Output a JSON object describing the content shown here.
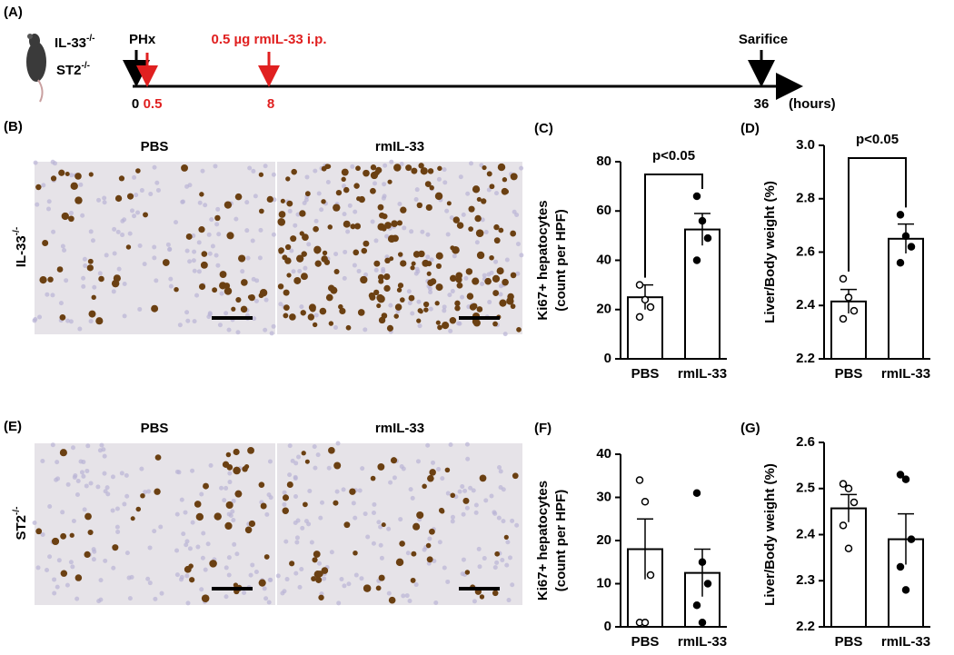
{
  "panel_labels": [
    "(A)",
    "(B)",
    "(C)",
    "(D)",
    "(E)",
    "(F)",
    "(G)"
  ],
  "timeline": {
    "genotypes": [
      {
        "text": "IL-33",
        "sup": "-/-"
      },
      {
        "text": "ST2",
        "sup": "-/-"
      }
    ],
    "events": [
      "PHx",
      "0.5 µg rmIL-33 i.p.",
      "Sarifice"
    ],
    "time_labels": [
      "0",
      "0.5",
      "8",
      "36"
    ],
    "unit": "(hours)"
  },
  "histology": {
    "column_titles": [
      "PBS",
      "rmIL-33"
    ],
    "rows": [
      {
        "text": "IL-33",
        "sup": "-/-"
      },
      {
        "text": "ST2",
        "sup": "-/-"
      }
    ]
  },
  "chart_data": [
    {
      "type": "bar",
      "ylabel": [
        "Ki67+ hepatocytes",
        "(count per HPF)"
      ],
      "annotation": "p<0.05",
      "categories": [
        "PBS",
        "rmIL-33"
      ],
      "values": [
        25,
        52.5
      ],
      "errors": [
        5,
        6.5
      ],
      "points": [
        [
          30,
          24,
          21,
          17
        ],
        [
          66,
          56,
          49,
          40
        ]
      ],
      "ylim": [
        0,
        80
      ],
      "yticks": [
        0,
        20,
        40,
        60,
        80
      ]
    },
    {
      "type": "bar",
      "ylabel": [
        "Liver/Body weight (%)"
      ],
      "annotation": "p<0.05",
      "categories": [
        "PBS",
        "rmIL-33"
      ],
      "values": [
        2.415,
        2.65
      ],
      "errors": [
        0.045,
        0.055
      ],
      "points": [
        [
          2.5,
          2.43,
          2.38,
          2.35
        ],
        [
          2.74,
          2.66,
          2.62,
          2.56
        ]
      ],
      "ylim": [
        2.2,
        3.0
      ],
      "yticks": [
        2.2,
        2.4,
        2.6,
        2.8,
        {
          "value": 3.0,
          "label": "3.0"
        }
      ]
    },
    {
      "type": "bar",
      "ylabel": [
        "Ki67+ hepatocytes",
        "(count per HPF)"
      ],
      "categories": [
        "PBS",
        "rmIL-33"
      ],
      "values": [
        18,
        12.5
      ],
      "errors": [
        7,
        5.5
      ],
      "points": [
        [
          34,
          29,
          12,
          1,
          1
        ],
        [
          31,
          15,
          10,
          5,
          1
        ]
      ],
      "ylim": [
        0,
        40
      ],
      "yticks": [
        0,
        10,
        20,
        30,
        40
      ]
    },
    {
      "type": "bar",
      "ylabel": [
        "Liver/Body weight (%)"
      ],
      "categories": [
        "PBS",
        "rmIL-33"
      ],
      "values": [
        2.457,
        2.39
      ],
      "errors": [
        0.03,
        0.055
      ],
      "points": [
        [
          2.51,
          2.5,
          2.47,
          2.42,
          2.37
        ],
        [
          2.53,
          2.52,
          2.39,
          2.33,
          2.28
        ]
      ],
      "ylim": [
        2.2,
        2.6
      ],
      "yticks": [
        2.2,
        2.3,
        2.4,
        2.5,
        2.6
      ]
    }
  ]
}
